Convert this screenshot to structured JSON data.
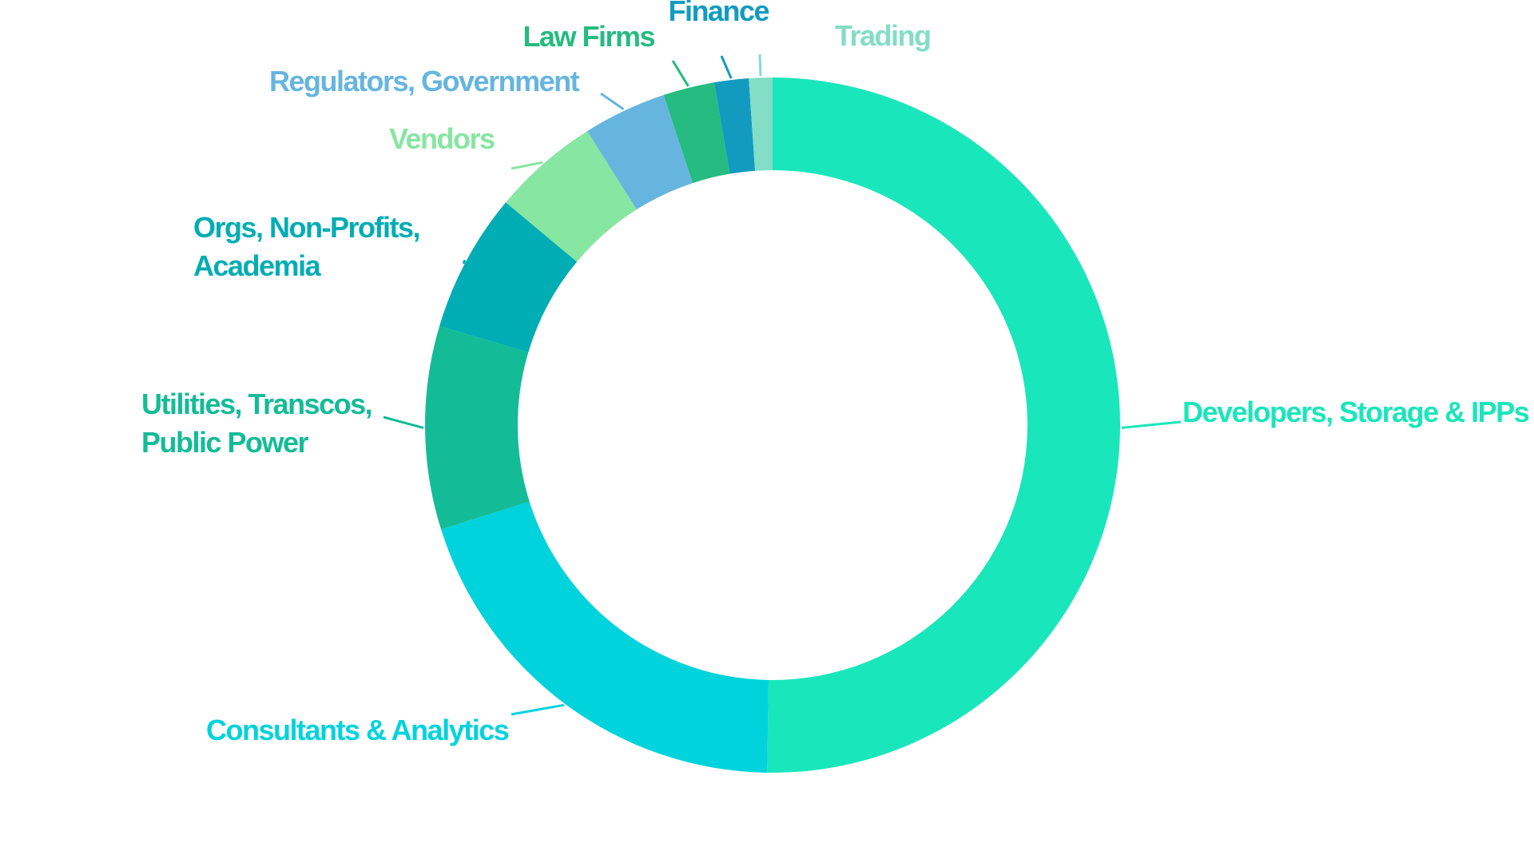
{
  "chart_data": {
    "type": "pie",
    "donut": true,
    "grid": false,
    "legend": "none",
    "slices": [
      {
        "label": "Developers, Storage & IPPs",
        "value": 50.5,
        "color": "#1ae6bb"
      },
      {
        "label": "Consultants & Analytics",
        "value": 20.0,
        "color": "#00d3dc"
      },
      {
        "label": "Utilities, Transcos, Public Power",
        "value": 9.5,
        "color": "#13bc97"
      },
      {
        "label": "Orgs, Non-Profits, Academia",
        "value": 6.5,
        "color": "#00adb4"
      },
      {
        "label": "Vendors",
        "value": 5.0,
        "color": "#87e6a1"
      },
      {
        "label": "Regulators, Government",
        "value": 3.9,
        "color": "#66b5df"
      },
      {
        "label": "Law Firms",
        "value": 2.4,
        "color": "#25bb81"
      },
      {
        "label": "Finance",
        "value": 1.6,
        "color": "#129bbf"
      },
      {
        "label": "Trading",
        "value": 1.1,
        "color": "#83ddc7"
      }
    ]
  }
}
